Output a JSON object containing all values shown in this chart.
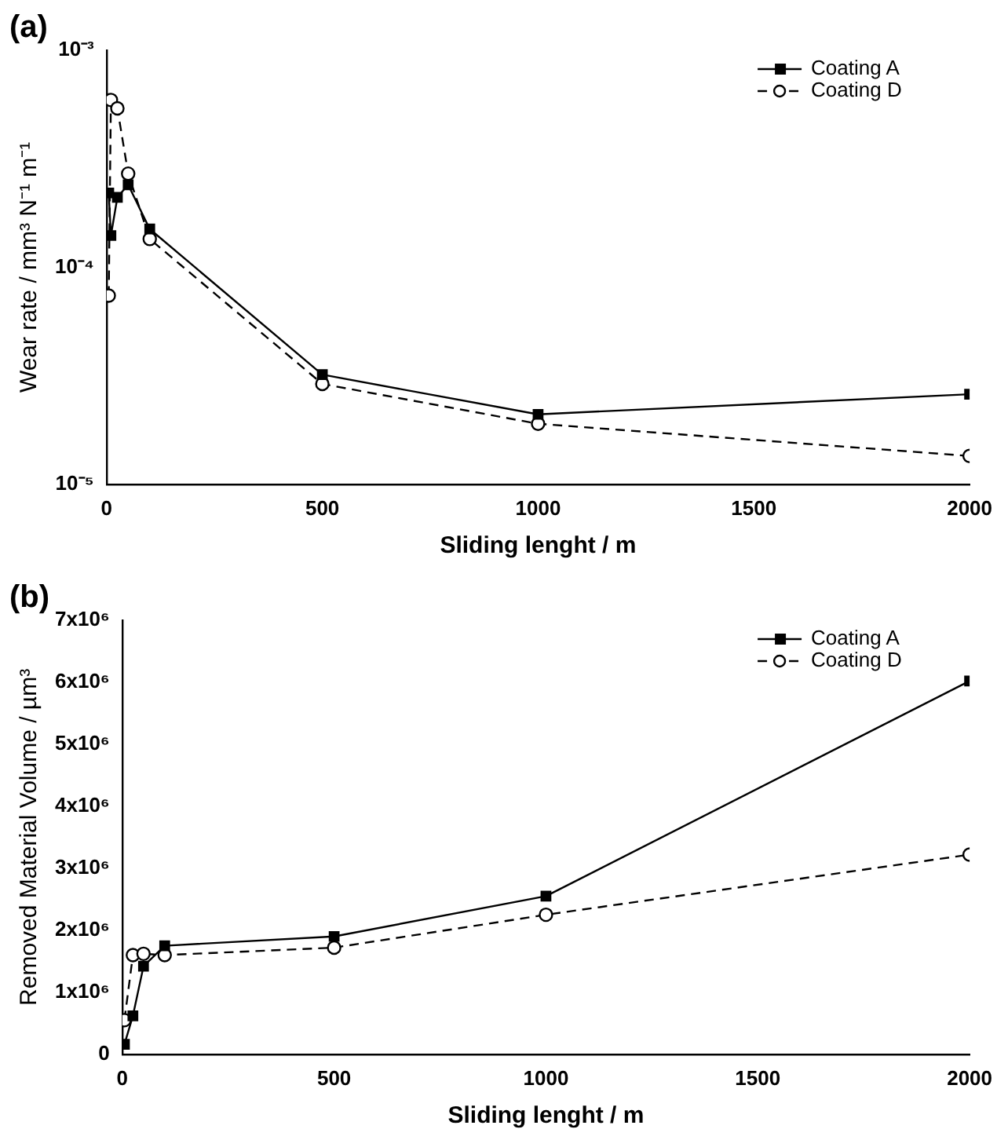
{
  "chart_data": [
    {
      "type": "line",
      "title": "(a)",
      "xlabel": "Sliding lenght / m",
      "ylabel": "Wear rate / mm³ N⁻¹ m⁻¹",
      "log": "y",
      "xlim": [
        0,
        2000
      ],
      "xticks": [
        0,
        500,
        1000,
        1500,
        2000
      ],
      "ylim": [
        1e-05,
        0.001
      ],
      "yticks": [
        {
          "value": 1e-05,
          "label": "10⁻⁵"
        },
        {
          "value": 0.0001,
          "label": "10⁻⁴"
        },
        {
          "value": 0.001,
          "label": "10⁻³"
        }
      ],
      "legend": "top right",
      "series": [
        {
          "name": "Coating A",
          "color": "#000000",
          "marker": "square",
          "line_style": "solid",
          "x": [
            5,
            10,
            25,
            50,
            100,
            500,
            1000,
            2000
          ],
          "values": [
            0.00022,
            0.00014,
            0.00021,
            0.00024,
            0.00015,
            3.2e-05,
            2.1e-05,
            2.6e-05
          ]
        },
        {
          "name": "Coating D",
          "color": "#000000",
          "marker": "circle",
          "line_style": "dashed",
          "x": [
            5,
            10,
            25,
            50,
            100,
            500,
            1000,
            2000
          ],
          "values": [
            7.4e-05,
            0.00059,
            0.00054,
            0.00027,
            0.000135,
            2.9e-05,
            1.9e-05,
            1.35e-05
          ]
        }
      ]
    },
    {
      "type": "line",
      "title": "(b)",
      "xlabel": "Sliding lenght / m",
      "ylabel": "Removed Material Volume / µm³",
      "xlim": [
        0,
        2000
      ],
      "xticks": [
        0,
        500,
        1000,
        1500,
        2000
      ],
      "ylim": [
        0,
        7000000
      ],
      "yticks": [
        0,
        {
          "value": 1000000,
          "label": "1x10⁶"
        },
        {
          "value": 2000000,
          "label": "2x10⁶"
        },
        {
          "value": 3000000,
          "label": "3x10⁶"
        },
        {
          "value": 4000000,
          "label": "4x10⁶"
        },
        {
          "value": 5000000,
          "label": "5x10⁶"
        },
        {
          "value": 6000000,
          "label": "6x10⁶"
        },
        {
          "value": 7000000,
          "label": "7x10⁶"
        }
      ],
      "legend": "top right",
      "series": [
        {
          "name": "Coating A",
          "color": "#000000",
          "marker": "square",
          "line_style": "solid",
          "x": [
            5,
            25,
            50,
            100,
            500,
            1000,
            2000
          ],
          "values": [
            160000,
            620000,
            1420000,
            1750000,
            1900000,
            2550000,
            6020000
          ]
        },
        {
          "name": "Coating D",
          "color": "#000000",
          "marker": "circle",
          "line_style": "dashed",
          "x": [
            5,
            25,
            50,
            100,
            500,
            1000,
            2000
          ],
          "values": [
            550000,
            1600000,
            1620000,
            1600000,
            1720000,
            2250000,
            3220000
          ]
        }
      ]
    }
  ]
}
